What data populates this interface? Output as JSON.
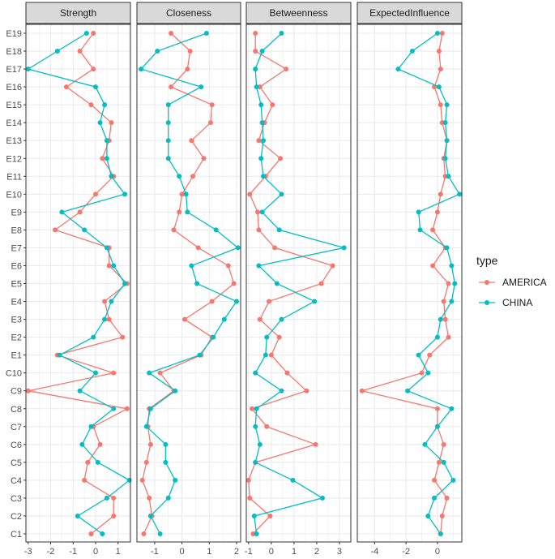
{
  "chart_data": {
    "type": "line",
    "categories": [
      "C1",
      "C2",
      "C3",
      "C4",
      "C5",
      "C6",
      "C7",
      "C8",
      "C9",
      "C10",
      "E1",
      "E2",
      "E3",
      "E4",
      "E5",
      "E6",
      "E7",
      "E8",
      "E9",
      "E10",
      "E11",
      "E12",
      "E13",
      "E14",
      "E15",
      "E16",
      "E17",
      "E18",
      "E19"
    ],
    "legend": {
      "title": "type",
      "position": "right",
      "entries": [
        {
          "name": "AMERICA",
          "color": "#F8766D"
        },
        {
          "name": "CHINA",
          "color": "#00BFC4"
        }
      ]
    },
    "grid": true,
    "panels": [
      {
        "title": "Strength",
        "xlim": [
          -3.1,
          1.55
        ],
        "xticks": [
          -3,
          -2,
          -1,
          0,
          1
        ],
        "xtick_labels": [
          "-3",
          "-2",
          "-1",
          "0",
          "1"
        ],
        "series": [
          {
            "name": "AMERICA",
            "values": [
              -0.2,
              0.8,
              0.8,
              -0.5,
              -0.35,
              0.2,
              -0.1,
              1.4,
              -3.0,
              0.8,
              -1.7,
              1.2,
              0.6,
              0.4,
              1.4,
              0.6,
              0.6,
              -1.8,
              -0.7,
              0.0,
              0.8,
              0.3,
              0.6,
              0.7,
              -0.2,
              -1.3,
              -0.1,
              -0.7,
              -0.1
            ]
          },
          {
            "name": "CHINA",
            "values": [
              0.3,
              -0.8,
              0.5,
              1.5,
              0.1,
              -0.6,
              -0.2,
              0.8,
              -0.7,
              0.0,
              -1.6,
              -0.1,
              0.4,
              0.7,
              1.3,
              0.8,
              0.5,
              -0.5,
              -1.5,
              1.3,
              0.7,
              0.5,
              0.5,
              0.2,
              0.4,
              0.0,
              -3.0,
              -1.7,
              -0.4
            ]
          }
        ]
      },
      {
        "title": "Closeness",
        "xlim": [
          -1.65,
          2.15
        ],
        "xticks": [
          -1,
          0,
          1,
          2
        ],
        "xtick_labels": [
          "-1",
          "0",
          "1",
          "2"
        ],
        "series": [
          {
            "name": "AMERICA",
            "values": [
              -1.4,
              -1.1,
              -1.2,
              -1.45,
              -1.3,
              -1.15,
              -1.25,
              -1.2,
              -0.3,
              -0.8,
              0.7,
              1.1,
              0.1,
              1.1,
              1.9,
              1.7,
              0.6,
              -0.3,
              -0.1,
              0.0,
              0.4,
              0.8,
              0.35,
              1.05,
              1.1,
              -0.4,
              0.2,
              0.3,
              -0.4
            ]
          },
          {
            "name": "CHINA",
            "values": [
              -0.8,
              -1.15,
              -0.5,
              -0.25,
              -0.6,
              -0.6,
              -1.3,
              -1.15,
              -0.25,
              -1.2,
              0.65,
              1.15,
              1.55,
              2.0,
              0.55,
              0.35,
              2.05,
              1.25,
              0.2,
              0.15,
              -0.1,
              -0.5,
              -0.5,
              -0.5,
              -0.5,
              0.7,
              -1.5,
              -0.9,
              0.9
            ]
          }
        ]
      },
      {
        "title": "Betweenness",
        "xlim": [
          -1.1,
          3.5
        ],
        "xticks": [
          -1,
          0,
          1,
          2,
          3
        ],
        "xtick_labels": [
          "-1",
          "0",
          "1",
          "2",
          "3"
        ],
        "series": [
          {
            "name": "AMERICA",
            "values": [
              -0.8,
              -0.05,
              -0.95,
              -1.0,
              -0.7,
              1.95,
              -0.2,
              -0.85,
              1.55,
              0.7,
              0.0,
              0.35,
              -0.5,
              -0.1,
              2.2,
              2.7,
              0.15,
              -0.55,
              -0.6,
              -0.95,
              -0.25,
              0.4,
              -0.55,
              -0.3,
              0.05,
              -0.5,
              0.65,
              -0.7,
              -0.7
            ]
          },
          {
            "name": "CHINA",
            "values": [
              -0.65,
              -0.75,
              2.25,
              0.95,
              -0.7,
              -0.5,
              -0.7,
              -0.65,
              0.45,
              -0.7,
              -0.25,
              -0.2,
              0.45,
              1.9,
              0.25,
              -0.55,
              3.2,
              0.35,
              -0.4,
              0.45,
              -0.35,
              -0.45,
              -0.35,
              -0.4,
              -0.45,
              -0.65,
              -0.7,
              -0.4,
              0.45
            ]
          }
        ]
      },
      {
        "title": "ExpectedInfluence",
        "xlim": [
          -5.1,
          1.55
        ],
        "xticks": [
          -4,
          -2,
          0
        ],
        "xtick_labels": [
          "-4",
          "-2",
          "0"
        ],
        "series": [
          {
            "name": "AMERICA",
            "values": [
              0.2,
              0.3,
              0.6,
              -0.2,
              0.1,
              0.4,
              0.0,
              0.0,
              -4.8,
              -1.0,
              -0.5,
              0.7,
              0.5,
              0.4,
              0.7,
              -0.3,
              0.5,
              -0.3,
              0.0,
              0.2,
              0.5,
              0.4,
              0.6,
              0.3,
              0.2,
              -0.2,
              0.2,
              0.1,
              0.3
            ]
          },
          {
            "name": "CHINA",
            "values": [
              0.2,
              -0.6,
              -0.2,
              1.0,
              0.4,
              -0.8,
              0.0,
              0.9,
              -1.9,
              -0.6,
              -1.2,
              0.0,
              0.2,
              0.9,
              1.1,
              0.9,
              0.6,
              -1.1,
              -1.2,
              1.4,
              0.7,
              0.5,
              0.6,
              0.5,
              0.6,
              0.1,
              -2.5,
              -1.6,
              0.0
            ]
          }
        ]
      }
    ]
  }
}
